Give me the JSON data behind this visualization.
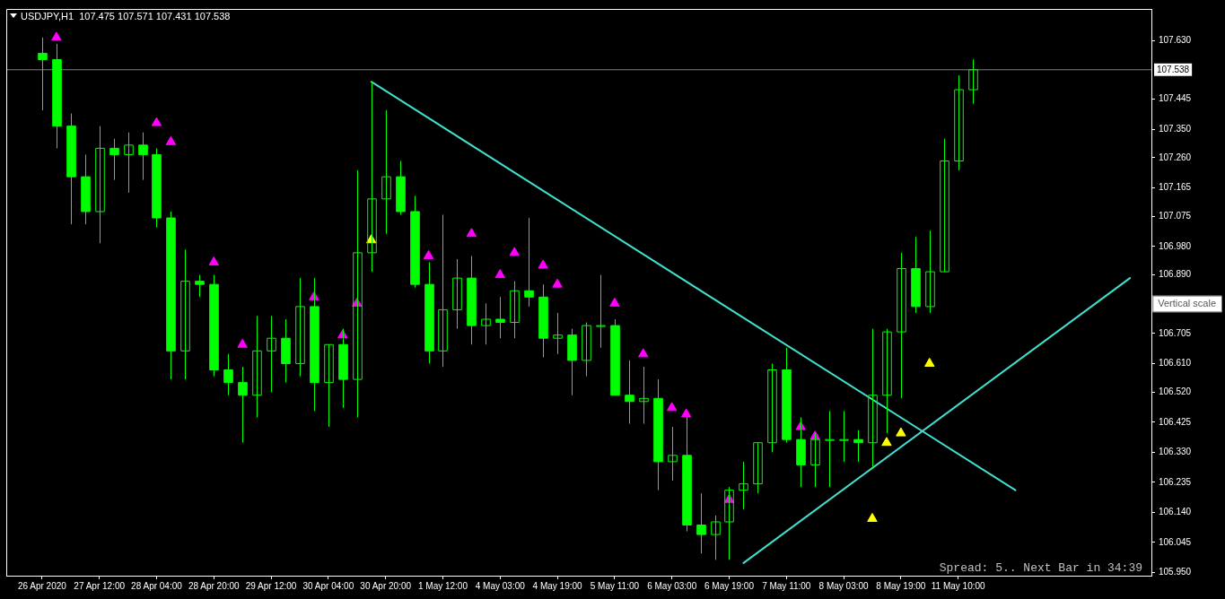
{
  "chart_data": {
    "type": "candlestick",
    "title": "USDJPY,H1  107.475 107.571 107.431 107.538",
    "annotations": [
      "Spread: 5.. Next Bar in 34:39",
      "Vertical scale"
    ],
    "categories": [
      null,
      null,
      "26 Apr 2020",
      null,
      null,
      null,
      "27 Apr 12:00",
      null,
      null,
      null,
      "28 Apr 04:00",
      null,
      null,
      null,
      "28 Apr 20:00",
      null,
      null,
      null,
      "29 Apr 12:00",
      null,
      null,
      null,
      "30 Apr 04:00",
      null,
      null,
      null,
      "30 Apr 20:00",
      null,
      null,
      null,
      "1 May 12:00",
      null,
      null,
      null,
      "4 May 03:00",
      null,
      null,
      null,
      "4 May 19:00",
      null,
      null,
      null,
      "5 May 11:00",
      null,
      null,
      null,
      "6 May 03:00",
      null,
      null,
      null,
      "6 May 19:00",
      null,
      null,
      null,
      "7 May 11:00",
      null,
      null,
      null,
      "8 May 03:00",
      null,
      null,
      null,
      "8 May 19:00",
      null,
      null,
      null,
      "11 May 10:00",
      null,
      null,
      null,
      null,
      null,
      null,
      null,
      null,
      null,
      null,
      null,
      null,
      null
    ],
    "ylim": [
      105.94,
      107.73
    ],
    "yticks": [
      {
        "value": 105.95,
        "label": "105.950"
      },
      {
        "value": 106.045,
        "label": "106.045"
      },
      {
        "value": 106.14,
        "label": "106.140"
      },
      {
        "value": 106.235,
        "label": "106.235"
      },
      {
        "value": 106.33,
        "label": "106.330"
      },
      {
        "value": 106.425,
        "label": "106.425"
      },
      {
        "value": 106.52,
        "label": "106.520"
      },
      {
        "value": 106.61,
        "label": "106.610"
      },
      {
        "value": 106.705,
        "label": "106.705"
      },
      {
        "value": 106.89,
        "label": "106.890"
      },
      {
        "value": 106.98,
        "label": "106.980"
      },
      {
        "value": 107.075,
        "label": "107.075"
      },
      {
        "value": 107.165,
        "label": "107.165"
      },
      {
        "value": 107.26,
        "label": "107.260"
      },
      {
        "value": 107.35,
        "label": "107.350"
      },
      {
        "value": 107.445,
        "label": "107.445"
      },
      {
        "value": 107.63,
        "label": "107.630"
      }
    ],
    "ref_lines": [
      {
        "axis": "y",
        "value": 107.538,
        "label": "107.538",
        "color": "#808080"
      }
    ],
    "series": [
      {
        "color": "#00ff00",
        "ohlc": [
          null,
          null,
          [
            107.59,
            107.64,
            107.41,
            107.57
          ],
          [
            107.57,
            107.62,
            107.29,
            107.36
          ],
          [
            107.36,
            107.4,
            107.05,
            107.2
          ],
          [
            107.2,
            107.27,
            107.05,
            107.09
          ],
          [
            107.09,
            107.36,
            106.99,
            107.29
          ],
          [
            107.29,
            107.32,
            107.19,
            107.27
          ],
          [
            107.27,
            107.34,
            107.15,
            107.3
          ],
          [
            107.3,
            107.34,
            107.19,
            107.27
          ],
          [
            107.27,
            107.29,
            107.04,
            107.07
          ],
          [
            107.07,
            107.09,
            106.56,
            106.65
          ],
          [
            106.65,
            106.97,
            106.56,
            106.87
          ],
          [
            106.87,
            106.89,
            106.82,
            106.86
          ],
          [
            106.86,
            106.89,
            106.57,
            106.59
          ],
          [
            106.59,
            106.64,
            106.51,
            106.55
          ],
          [
            106.55,
            106.6,
            106.36,
            106.51
          ],
          [
            106.51,
            106.76,
            106.44,
            106.65
          ],
          [
            106.65,
            106.76,
            106.52,
            106.69
          ],
          [
            106.69,
            106.75,
            106.55,
            106.61
          ],
          [
            106.61,
            106.88,
            106.57,
            106.79
          ],
          [
            106.79,
            106.88,
            106.46,
            106.55
          ],
          [
            106.55,
            106.67,
            106.41,
            106.67
          ],
          [
            106.67,
            106.72,
            106.47,
            106.56
          ],
          [
            106.56,
            107.22,
            106.44,
            106.96
          ],
          [
            106.96,
            107.5,
            106.9,
            107.13
          ],
          [
            107.13,
            107.41,
            107.02,
            107.2
          ],
          [
            107.2,
            107.25,
            107.08,
            107.09
          ],
          [
            107.09,
            107.14,
            106.85,
            106.86
          ],
          [
            106.86,
            106.93,
            106.61,
            106.65
          ],
          [
            106.65,
            107.08,
            106.6,
            106.78
          ],
          [
            106.78,
            106.94,
            106.72,
            106.88
          ],
          [
            106.88,
            106.95,
            106.67,
            106.73
          ],
          [
            106.73,
            106.8,
            106.67,
            106.75
          ],
          [
            106.75,
            106.82,
            106.69,
            106.74
          ],
          [
            106.74,
            106.87,
            106.69,
            106.84
          ],
          [
            106.84,
            107.07,
            106.79,
            106.82
          ],
          [
            106.82,
            106.86,
            106.63,
            106.69
          ],
          [
            106.69,
            106.77,
            106.64,
            106.7
          ],
          [
            106.7,
            106.72,
            106.51,
            106.62
          ],
          [
            106.62,
            106.74,
            106.57,
            106.73
          ],
          [
            106.73,
            106.89,
            106.66,
            106.73
          ],
          [
            106.73,
            106.75,
            106.51,
            106.51
          ],
          [
            106.51,
            106.62,
            106.42,
            106.49
          ],
          [
            106.49,
            106.6,
            106.42,
            106.5
          ],
          [
            106.5,
            106.56,
            106.21,
            106.3
          ],
          [
            106.3,
            106.41,
            106.24,
            106.32
          ],
          [
            106.32,
            106.44,
            106.08,
            106.1
          ],
          [
            106.1,
            106.2,
            106.01,
            106.07
          ],
          [
            106.07,
            106.13,
            105.99,
            106.11
          ],
          [
            106.11,
            106.22,
            105.99,
            106.21
          ],
          [
            106.21,
            106.3,
            106.15,
            106.23
          ],
          [
            106.23,
            106.36,
            106.2,
            106.36
          ],
          [
            106.36,
            106.61,
            106.33,
            106.59
          ],
          [
            106.59,
            106.66,
            106.36,
            106.37
          ],
          [
            106.37,
            106.44,
            106.22,
            106.29
          ],
          [
            106.29,
            106.39,
            106.22,
            106.37
          ],
          [
            106.37,
            106.46,
            106.22,
            106.37
          ],
          [
            106.37,
            106.46,
            106.3,
            106.37
          ],
          [
            106.37,
            106.4,
            106.3,
            106.36
          ],
          [
            106.36,
            106.72,
            106.28,
            106.51
          ],
          [
            106.51,
            106.72,
            106.39,
            106.71
          ],
          [
            106.71,
            106.96,
            106.5,
            106.91
          ],
          [
            106.91,
            107.01,
            106.77,
            106.79
          ],
          [
            106.79,
            107.03,
            106.77,
            106.9
          ],
          [
            106.9,
            107.32,
            106.9,
            107.25
          ],
          [
            107.25,
            107.52,
            107.22,
            107.475
          ],
          [
            107.475,
            107.571,
            107.431,
            107.538
          ],
          null,
          null,
          null,
          null,
          null,
          null,
          null,
          null,
          null,
          null,
          null,
          null
        ]
      },
      {
        "type": "line",
        "color": "#40e0d0",
        "values": [
          null,
          null,
          null,
          null,
          null,
          null,
          null,
          null,
          null,
          null,
          null,
          null,
          null,
          null,
          null,
          null,
          null,
          null,
          null,
          null,
          null,
          null,
          null,
          null,
          null,
          107.5,
          null,
          null,
          null,
          null,
          null,
          null,
          null,
          null,
          null,
          null,
          null,
          null,
          null,
          null,
          null,
          null,
          null,
          null,
          null,
          null,
          null,
          null,
          null,
          null,
          null,
          null,
          null,
          null,
          null,
          null,
          null,
          null,
          null,
          null,
          null,
          null,
          null,
          null,
          null,
          null,
          null,
          null,
          null,
          null,
          106.21,
          null,
          null,
          null,
          null,
          null,
          null,
          null,
          null,
          null
        ]
      },
      {
        "type": "line",
        "color": "#40e0d0",
        "values": [
          null,
          null,
          null,
          null,
          null,
          null,
          null,
          null,
          null,
          null,
          null,
          null,
          null,
          null,
          null,
          null,
          null,
          null,
          null,
          null,
          null,
          null,
          null,
          null,
          null,
          null,
          null,
          null,
          null,
          null,
          null,
          null,
          null,
          null,
          null,
          null,
          null,
          null,
          null,
          null,
          null,
          null,
          null,
          null,
          null,
          null,
          null,
          null,
          null,
          null,
          null,
          105.98,
          null,
          null,
          null,
          null,
          null,
          null,
          null,
          null,
          null,
          null,
          null,
          null,
          null,
          null,
          null,
          null,
          null,
          null,
          null,
          null,
          null,
          null,
          null,
          null,
          null,
          null,
          106.88,
          null
        ]
      },
      {
        "type": "scatter",
        "color": "#ff00ff",
        "marker": "triangle",
        "values": [
          null,
          null,
          null,
          107.64,
          null,
          null,
          null,
          null,
          null,
          null,
          107.37,
          107.31,
          null,
          null,
          106.93,
          null,
          106.67,
          null,
          null,
          null,
          null,
          106.82,
          null,
          106.7,
          106.8,
          null,
          null,
          null,
          null,
          106.95,
          null,
          null,
          107.02,
          null,
          106.89,
          106.96,
          null,
          106.92,
          106.86,
          null,
          null,
          null,
          106.8,
          null,
          106.64,
          null,
          106.47,
          106.45,
          null,
          null,
          106.18,
          null,
          null,
          null,
          null,
          106.41,
          106.38,
          null,
          null,
          null,
          null,
          null,
          null,
          null,
          null,
          null,
          null,
          null,
          null,
          null,
          null,
          null,
          null,
          null,
          null,
          null,
          null,
          null,
          null,
          null
        ]
      },
      {
        "type": "scatter",
        "color": "#ffff00",
        "marker": "triangle",
        "values": [
          null,
          null,
          null,
          null,
          null,
          null,
          null,
          null,
          null,
          null,
          null,
          null,
          null,
          null,
          null,
          null,
          null,
          null,
          null,
          null,
          null,
          null,
          null,
          null,
          null,
          107.0,
          null,
          null,
          null,
          null,
          null,
          null,
          null,
          null,
          null,
          null,
          null,
          null,
          null,
          null,
          null,
          null,
          null,
          null,
          null,
          null,
          null,
          null,
          null,
          null,
          null,
          null,
          null,
          null,
          null,
          null,
          null,
          null,
          null,
          null,
          106.12,
          106.36,
          106.39,
          null,
          106.61,
          null,
          null,
          null,
          null,
          null,
          null,
          null,
          null,
          null,
          null,
          null,
          null,
          null,
          null,
          null
        ]
      }
    ]
  }
}
